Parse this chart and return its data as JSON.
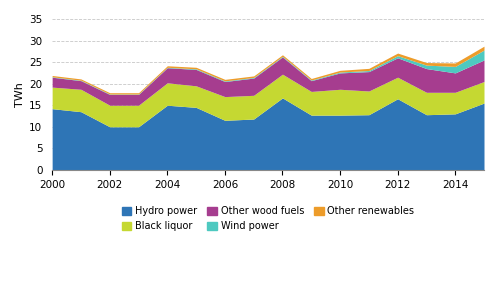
{
  "years": [
    2000,
    2001,
    2002,
    2003,
    2004,
    2005,
    2006,
    2007,
    2008,
    2009,
    2010,
    2011,
    2012,
    2013,
    2014,
    2015
  ],
  "hydro_power": [
    14.2,
    13.5,
    10.0,
    10.0,
    15.0,
    14.5,
    11.5,
    11.8,
    16.7,
    12.7,
    12.7,
    12.8,
    16.5,
    12.8,
    13.0,
    15.5
  ],
  "black_liquor": [
    5.0,
    5.2,
    5.0,
    5.0,
    5.2,
    5.0,
    5.5,
    5.5,
    5.5,
    5.5,
    6.0,
    5.5,
    5.0,
    5.2,
    5.0,
    5.0
  ],
  "other_wood_fuels": [
    2.3,
    2.0,
    2.5,
    2.5,
    3.5,
    3.8,
    3.5,
    4.0,
    4.0,
    2.5,
    3.8,
    4.5,
    4.5,
    5.5,
    4.5,
    5.0
  ],
  "wind_power": [
    0.1,
    0.1,
    0.1,
    0.1,
    0.1,
    0.15,
    0.15,
    0.15,
    0.15,
    0.15,
    0.2,
    0.25,
    0.5,
    0.8,
    1.5,
    2.3
  ],
  "other_renewables": [
    0.3,
    0.3,
    0.3,
    0.3,
    0.35,
    0.35,
    0.35,
    0.35,
    0.35,
    0.35,
    0.4,
    0.5,
    0.6,
    0.6,
    0.8,
    0.9
  ],
  "colors": {
    "hydro_power": "#2e75b6",
    "black_liquor": "#c5d832",
    "other_wood_fuels": "#a63d8f",
    "wind_power": "#4ec9c0",
    "other_renewables": "#ed9c2a"
  },
  "ylim": [
    0,
    35
  ],
  "yticks": [
    0,
    5,
    10,
    15,
    20,
    25,
    30,
    35
  ],
  "ylabel": "TWh",
  "legend_labels": [
    "Hydro power",
    "Black liquor",
    "Other wood fuels",
    "Wind power",
    "Other renewables"
  ],
  "background_color": "#ffffff",
  "grid_color": "#c8c8c8"
}
